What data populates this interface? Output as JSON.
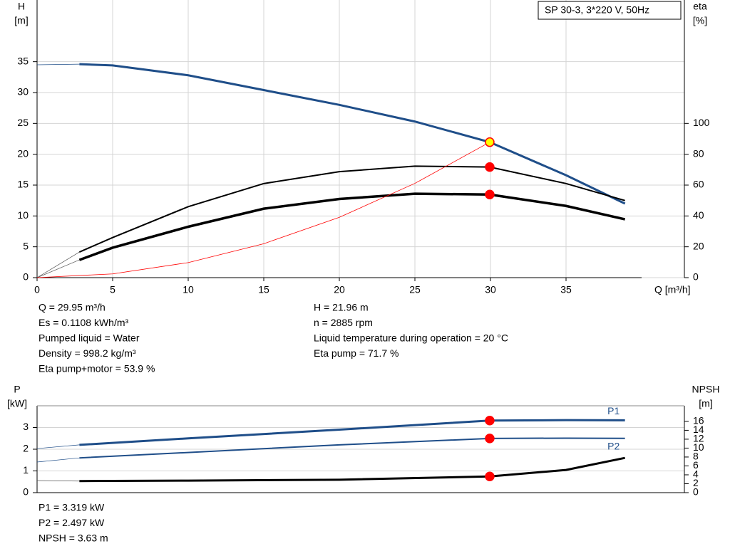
{
  "chart_data": [
    {
      "type": "line",
      "title": "SP 30-3, 3*220 V, 50Hz",
      "y_label": "H",
      "y_unit": "[m]",
      "y2_label": "eta",
      "y2_unit": "[%]",
      "x_label": "Q [m³/h]",
      "xlim": [
        0,
        40
      ],
      "xticks": [
        0,
        5,
        10,
        15,
        20,
        25,
        30,
        35
      ],
      "ylim": [
        0,
        45
      ],
      "yticks": [
        0,
        5,
        10,
        15,
        20,
        25,
        30,
        35
      ],
      "y2lim": [
        0,
        180
      ],
      "y2ticks": [
        0,
        20,
        40,
        60,
        80,
        100
      ],
      "grid": true,
      "operating_q": 29.95,
      "series": [
        {
          "color": "#1f4e89",
          "width": 0.7,
          "x": [
            0,
            2.8
          ],
          "values": [
            34.5,
            34.6
          ]
        },
        {
          "color": "#1f4e89",
          "width": 3,
          "marker": "#ffff00",
          "x": [
            2.8,
            5,
            10,
            15,
            20,
            25,
            29.95,
            35,
            38.9
          ],
          "values": [
            34.6,
            34.4,
            32.8,
            30.4,
            28.0,
            25.3,
            21.96,
            16.6,
            12.0
          ]
        },
        {
          "color": "#555555",
          "width": 0.7,
          "axis": "y2",
          "x": [
            0,
            2.8
          ],
          "values": [
            0,
            16.6
          ]
        },
        {
          "color": "#000000",
          "width": 2,
          "axis": "y2",
          "marker": "#ff0000",
          "x": [
            2.8,
            5,
            10,
            15,
            20,
            25,
            29.95,
            35,
            38.9
          ],
          "values": [
            16.6,
            26,
            46,
            61,
            68.7,
            72.3,
            71.7,
            61,
            50
          ]
        },
        {
          "color": "#555555",
          "width": 0.7,
          "axis": "y2",
          "x": [
            0,
            2.8
          ],
          "values": [
            0,
            11.5
          ]
        },
        {
          "color": "#000000",
          "width": 3.5,
          "axis": "y2",
          "marker": "#ff0000",
          "x": [
            2.8,
            5,
            10,
            15,
            20,
            25,
            29.95,
            35,
            38.9
          ],
          "values": [
            11.5,
            19.4,
            33,
            44.7,
            51,
            54.4,
            53.9,
            46.5,
            37.8
          ]
        },
        {
          "color": "#ff0000",
          "width": 0.8,
          "x": [
            0,
            5,
            10,
            15,
            20,
            25,
            29.95
          ],
          "values": [
            0,
            0.61,
            2.44,
            5.5,
            9.78,
            15.28,
            21.96
          ]
        }
      ]
    },
    {
      "type": "line",
      "y_label": "P",
      "y_unit": "[kW]",
      "y2_label": "NPSH",
      "y2_unit": "[m]",
      "xlim": [
        0,
        40
      ],
      "ylim": [
        0,
        4
      ],
      "yticks": [
        0,
        1,
        2,
        3
      ],
      "y2lim": [
        0,
        19.5
      ],
      "y2ticks": [
        0,
        2,
        4,
        6,
        8,
        10,
        12,
        14,
        16
      ],
      "grid": true,
      "operating_q": 29.95,
      "series": [
        {
          "color": "#1f4e89",
          "width": 0.7,
          "x": [
            0,
            2.8
          ],
          "values": [
            2.03,
            2.2
          ]
        },
        {
          "color": "#1f4e89",
          "width": 3,
          "marker": "#ff0000",
          "label": "P1",
          "label_pos": "above",
          "x": [
            2.8,
            10,
            20,
            29.95,
            35,
            38.9
          ],
          "values": [
            2.2,
            2.5,
            2.9,
            3.319,
            3.34,
            3.33
          ]
        },
        {
          "color": "#1f4e89",
          "width": 0.7,
          "x": [
            0,
            2.8
          ],
          "values": [
            1.41,
            1.6
          ]
        },
        {
          "color": "#1f4e89",
          "width": 2,
          "marker": "#ff0000",
          "label": "P2",
          "label_pos": "below",
          "x": [
            2.8,
            10,
            20,
            29.95,
            35,
            38.9
          ],
          "values": [
            1.6,
            1.85,
            2.2,
            2.497,
            2.51,
            2.5
          ]
        },
        {
          "color": "#555555",
          "width": 0.7,
          "axis": "y2",
          "x": [
            0,
            2.8
          ],
          "values": [
            2.7,
            2.6
          ]
        },
        {
          "color": "#000000",
          "width": 3,
          "axis": "y2",
          "marker": "#ff0000",
          "x": [
            2.8,
            10,
            20,
            29.95,
            35,
            38.9
          ],
          "values": [
            2.6,
            2.7,
            2.9,
            3.63,
            5.1,
            7.8
          ]
        }
      ]
    }
  ],
  "info": {
    "top_left": [
      "Q = 29.95 m³/h",
      "Es = 0.1108 kWh/m³",
      "Pumped liquid = Water",
      "Density = 998.2 kg/m³",
      "Eta pump+motor = 53.9 %"
    ],
    "top_right": [
      "H = 21.96 m",
      "n = 2885 rpm",
      "Liquid temperature during operation = 20 °C",
      "Eta pump = 71.7 %"
    ],
    "bottom": [
      "P1 = 3.319 kW",
      "P2 = 2.497 kW",
      "NPSH = 3.63 m"
    ]
  }
}
